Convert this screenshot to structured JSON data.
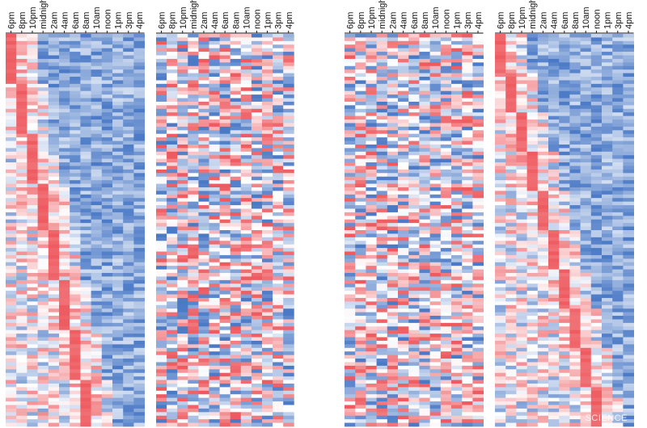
{
  "chart_data": {
    "type": "heatmap",
    "colors": {
      "high": "#ee5a5f",
      "mid": "#ffffff",
      "low": "#4a79c6",
      "tick": "#111111"
    },
    "value_range": [
      -1,
      1
    ],
    "panels": [
      {
        "name": "panel-1",
        "rows": 110,
        "columns": [
          "6pm",
          "8pm",
          "10pm",
          "midnight",
          "2am",
          "4am",
          "6am",
          "8am",
          "10am",
          "noon",
          "1pm",
          "3pm",
          "4pm"
        ],
        "pattern": "sorted-by-phase",
        "phase_peak_column_per_row_group": [
          0,
          1,
          2,
          3,
          4,
          5,
          6,
          7
        ]
      },
      {
        "name": "panel-2",
        "rows": 110,
        "columns": [
          "6pm",
          "8pm",
          "10pm",
          "midnight",
          "2am",
          "4am",
          "6am",
          "8am",
          "10am",
          "noon",
          "1pm",
          "3pm",
          "4pm"
        ],
        "pattern": "unsorted"
      },
      {
        "name": "panel-3",
        "rows": 110,
        "columns": [
          "6pm",
          "8pm",
          "10pm",
          "midnight",
          "2am",
          "4am",
          "6am",
          "8am",
          "10am",
          "noon",
          "1pm",
          "3pm",
          "4pm"
        ],
        "pattern": "unsorted"
      },
      {
        "name": "panel-4",
        "rows": 110,
        "columns": [
          "6pm",
          "8pm",
          "10pm",
          "midnight",
          "2am",
          "4am",
          "6am",
          "8am",
          "10am",
          "noon",
          "1pm",
          "3pm",
          "4pm"
        ],
        "pattern": "sorted-by-phase",
        "phase_peak_column_per_row_group": [
          0,
          1,
          2,
          3,
          4,
          5,
          6,
          7,
          8,
          9
        ]
      }
    ]
  },
  "watermark": "SCIENCE"
}
